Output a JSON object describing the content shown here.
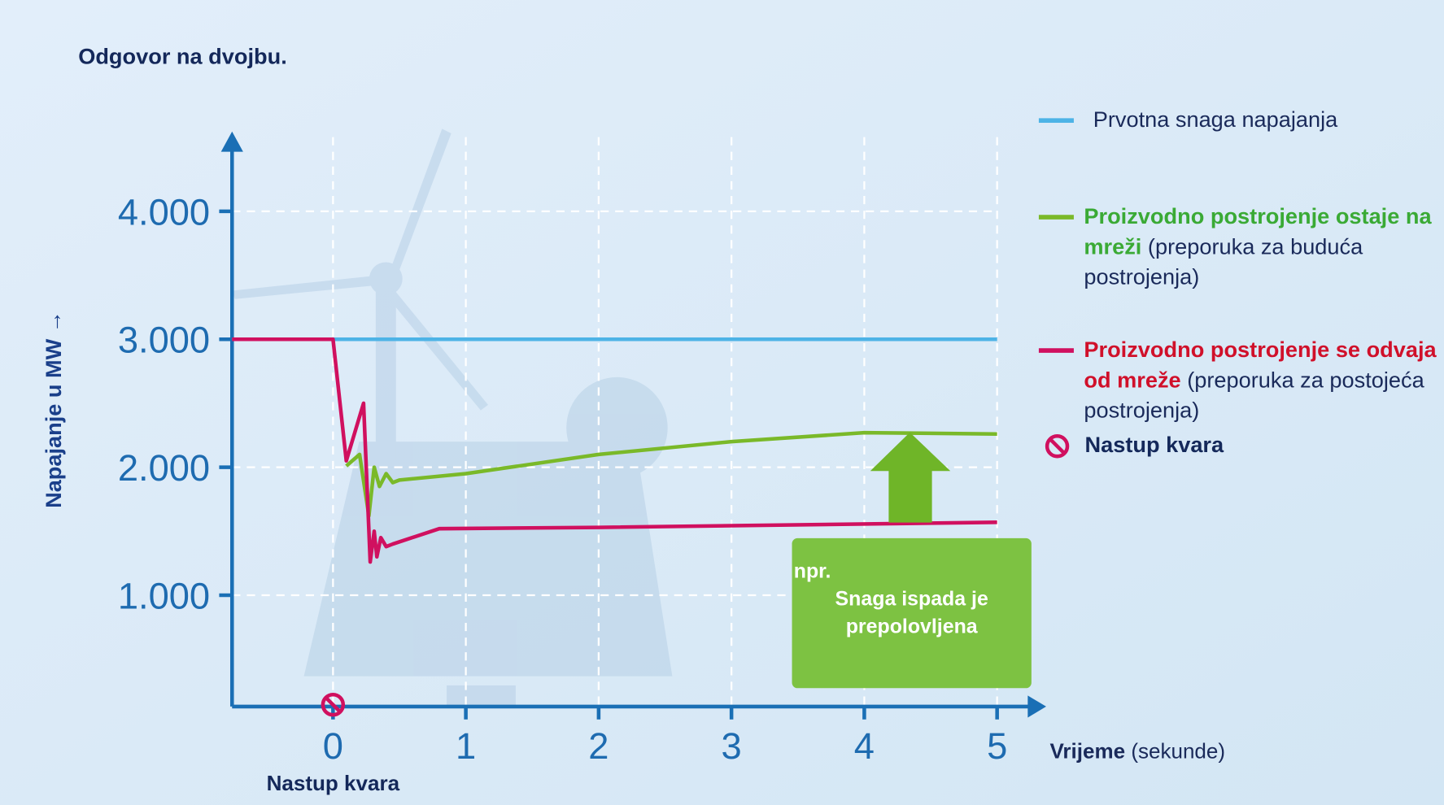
{
  "chart_data": {
    "type": "line",
    "title": "Odgovor na dvojbu.",
    "y_label": "Napajanje u MW →",
    "x_label": "Vrijeme",
    "x_unit": "(sekunde)",
    "xlim": [
      -0.76,
      5.3
    ],
    "xticks": [
      0,
      1,
      2,
      3,
      4,
      5
    ],
    "ylim": [
      130,
      4580
    ],
    "yticks": [
      {
        "value": 1000,
        "label": "1.000"
      },
      {
        "value": 2000,
        "label": "2.000"
      },
      {
        "value": 3000,
        "label": "3.000"
      },
      {
        "value": 4000,
        "label": "4.000"
      }
    ],
    "grid": true,
    "series": [
      {
        "name": "Prvotna snaga napajanja",
        "color": "#4db3e6",
        "x": [
          -0.76,
          5
        ],
        "values": [
          3000,
          3000
        ]
      },
      {
        "name": "Proizvodno postrojenje ostaje na mreži",
        "note": "(preporuka za buduća postrojenja)",
        "color": "#7ab929",
        "x": [
          0.1,
          0.2,
          0.27,
          0.31,
          0.35,
          0.4,
          0.45,
          0.5,
          1,
          2,
          3,
          4,
          5
        ],
        "values": [
          2010,
          2100,
          1620,
          2000,
          1850,
          1950,
          1880,
          1900,
          1950,
          2100,
          2200,
          2270,
          2260
        ]
      },
      {
        "name": "Proizvodno postrojenje se odvaja od mreže",
        "note": "(preporuka za postojeća postrojenja)",
        "color": "#d0105f",
        "x": [
          -0.76,
          0,
          0.1,
          0.23,
          0.28,
          0.31,
          0.33,
          0.36,
          0.4,
          0.45,
          0.8,
          2,
          5
        ],
        "values": [
          3000,
          3000,
          2050,
          2500,
          1260,
          1500,
          1300,
          1450,
          1380,
          1400,
          1520,
          1530,
          1570
        ]
      }
    ],
    "fault": {
      "x": 0,
      "label": "Nastup kvara",
      "legend": "Nastup kvara",
      "color": "#d0105f"
    },
    "callout": {
      "prefix": "npr.",
      "text": "Snaga ispada je prepolovljena",
      "color": "#7dc242"
    }
  }
}
